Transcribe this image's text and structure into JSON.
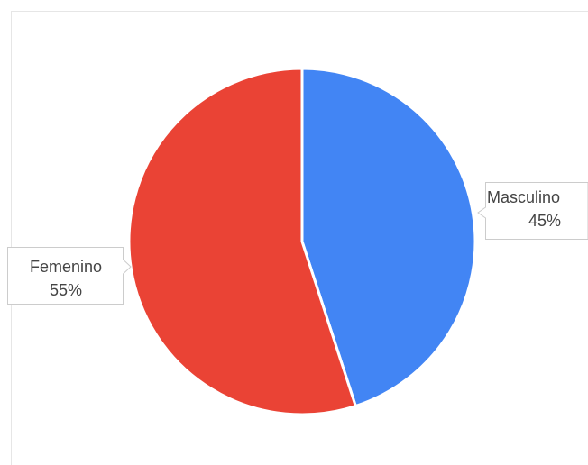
{
  "chart_data": {
    "type": "pie",
    "slices": [
      {
        "label": "Masculino",
        "value": 45,
        "percent_label": "45%",
        "color": "#4285f4"
      },
      {
        "label": "Femenino",
        "value": 55,
        "percent_label": "55%",
        "color": "#ea4335"
      }
    ],
    "start_angle_deg": 0,
    "direction": "clockwise",
    "slice_border_color": "#ffffff",
    "label_style": "callout-outside",
    "callout_border_color": "#cccccc",
    "callout_text_color": "#444444"
  }
}
